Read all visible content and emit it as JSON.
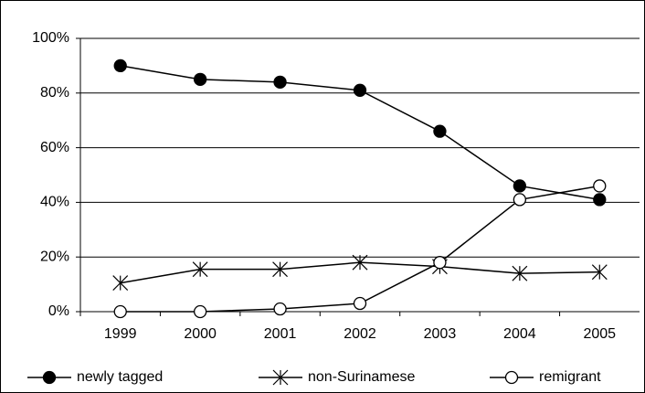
{
  "chart_data": {
    "type": "line",
    "categories": [
      "1999",
      "2000",
      "2001",
      "2002",
      "2003",
      "2004",
      "2005"
    ],
    "series": [
      {
        "name": "newly tagged",
        "color": "#000000",
        "marker": "filled-circle",
        "values": [
          90,
          85,
          84,
          81,
          66,
          46,
          41
        ]
      },
      {
        "name": "non-Surinamese",
        "color": "#000000",
        "marker": "star",
        "values": [
          10.5,
          15.5,
          15.5,
          18,
          16.5,
          14,
          14.5
        ]
      },
      {
        "name": "remigrant",
        "color": "#000000",
        "marker": "open-circle",
        "values": [
          0,
          0,
          1,
          3,
          18,
          41,
          46
        ]
      }
    ],
    "ylim": [
      0,
      100
    ],
    "yticks": [
      {
        "value": 0,
        "label": "0%"
      },
      {
        "value": 20,
        "label": "20%"
      },
      {
        "value": 40,
        "label": "40%"
      },
      {
        "value": 60,
        "label": "60%"
      },
      {
        "value": 80,
        "label": "80%"
      },
      {
        "value": 100,
        "label": "100%"
      }
    ],
    "grid": true,
    "legend": "bottom"
  }
}
